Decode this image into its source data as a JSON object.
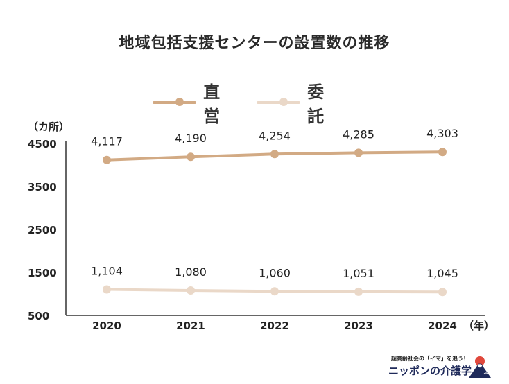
{
  "chart_data": {
    "type": "line",
    "title": "地域包括支援センターの設置数の推移",
    "ylabel": "（カ所）",
    "xlabel": "（年）",
    "x": [
      "2020",
      "2021",
      "2022",
      "2023",
      "2024"
    ],
    "yticks": [
      4500,
      3500,
      2500,
      1500,
      500
    ],
    "ylim": [
      500,
      4500
    ],
    "grid": false,
    "legend": "top-center",
    "series": [
      {
        "name": "直営",
        "values": [
          4117,
          4190,
          4254,
          4285,
          4303
        ],
        "labels": [
          "4,117",
          "4,190",
          "4,254",
          "4,285",
          "4,303"
        ],
        "color": "#d2aa84"
      },
      {
        "name": "委託",
        "values": [
          1104,
          1080,
          1060,
          1051,
          1045
        ],
        "labels": [
          "1,104",
          "1,080",
          "1,060",
          "1,051",
          "1,045"
        ],
        "color": "#ead8c8"
      }
    ]
  },
  "brand": {
    "tagline": "超高齢社会の「イマ」を追う！",
    "name": "ニッポンの介護学"
  },
  "colors": {
    "axis": "#333333",
    "text": "#222222",
    "logo_red": "#e0483c",
    "logo_navy": "#1f2a5a"
  },
  "icons": {
    "brand_logo": "mount-fuji-sunrise-icon"
  }
}
